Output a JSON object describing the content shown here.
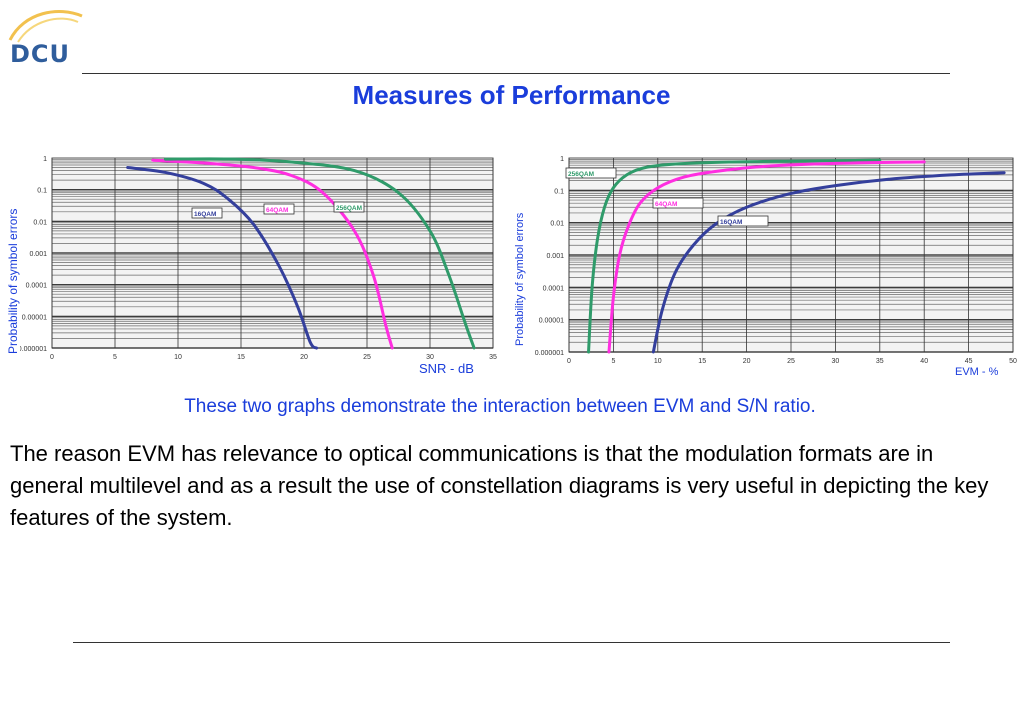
{
  "logo": {
    "text": "DCU"
  },
  "title": "Measures of Performance",
  "caption": "These two graphs demonstrate the interaction between EVM and S/N ratio.",
  "body": "The reason EVM has relevance to optical communications is that the modulation formats are in general multilevel and as a result the use of constellation diagrams is very useful in depicting the key features of the system.",
  "colors": {
    "title": "#1a3ddb",
    "qam16": "#343f9c",
    "qam64": "#ff2ee0",
    "qam256": "#2f9b6a"
  },
  "chart_data": [
    {
      "type": "line",
      "title": "",
      "xlabel": "SNR - dB",
      "ylabel": "Probability of symbol errors",
      "xlim": [
        0,
        35
      ],
      "ylim": [
        1e-06,
        1
      ],
      "yscale": "log",
      "grid": true,
      "x_ticks": [
        "0",
        "5",
        "10",
        "15",
        "20",
        "25",
        "30",
        "35"
      ],
      "y_ticks": [
        "1",
        "0.1",
        "0.01",
        "0.001",
        "0.0001",
        "0.00001",
        "0.000001"
      ],
      "series": [
        {
          "name": "16QAM",
          "x": [
            6,
            9,
            12,
            14,
            16,
            18,
            19.5,
            20.5,
            21
          ],
          "y": [
            0.5,
            0.35,
            0.16,
            0.05,
            0.008,
            0.0004,
            2e-05,
            1.5e-06,
            1e-06
          ]
        },
        {
          "name": "64QAM",
          "x": [
            8,
            12,
            16,
            19,
            21.5,
            24,
            25.5,
            26.5,
            27
          ],
          "y": [
            0.85,
            0.7,
            0.5,
            0.28,
            0.08,
            0.005,
            0.0002,
            5e-06,
            1e-06
          ]
        },
        {
          "name": "256QAM",
          "x": [
            9,
            14,
            19,
            24,
            27.5,
            30,
            31.5,
            32.8,
            33.5
          ],
          "y": [
            0.92,
            0.93,
            0.75,
            0.4,
            0.08,
            0.005,
            0.0002,
            6e-06,
            1e-06
          ]
        }
      ]
    },
    {
      "type": "line",
      "title": "",
      "xlabel": "EVM - %",
      "ylabel": "Probability of symbol errors",
      "xlim": [
        0,
        50
      ],
      "ylim": [
        1e-06,
        1
      ],
      "yscale": "log",
      "grid": true,
      "x_ticks": [
        "0",
        "5",
        "10",
        "15",
        "20",
        "25",
        "30",
        "35",
        "40",
        "45",
        "50"
      ],
      "y_ticks": [
        "1",
        "0.1",
        "0.01",
        "0.001",
        "0.0001",
        "0.00001",
        "0.000001"
      ],
      "series": [
        {
          "name": "256QAM",
          "x": [
            2.2,
            2.6,
            3.2,
            4,
            5,
            6.5,
            8.5,
            12,
            18,
            25,
            35
          ],
          "y": [
            1e-06,
            0.0001,
            0.003,
            0.03,
            0.12,
            0.3,
            0.5,
            0.65,
            0.75,
            0.8,
            0.85
          ]
        },
        {
          "name": "64QAM",
          "x": [
            4.5,
            5,
            5.7,
            6.7,
            8,
            10,
            13,
            17,
            22,
            30,
            40
          ],
          "y": [
            1e-06,
            5e-05,
            0.001,
            0.008,
            0.04,
            0.12,
            0.26,
            0.4,
            0.55,
            0.68,
            0.76
          ]
        },
        {
          "name": "16QAM",
          "x": [
            9.5,
            10.5,
            12,
            14,
            16.5,
            20,
            25,
            30,
            36,
            43,
            49
          ],
          "y": [
            1e-06,
            2e-05,
            0.0003,
            0.002,
            0.009,
            0.03,
            0.08,
            0.14,
            0.22,
            0.3,
            0.35
          ]
        }
      ]
    }
  ]
}
